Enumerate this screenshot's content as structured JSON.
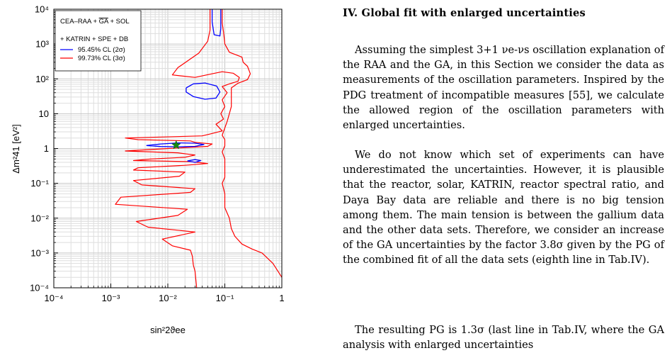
{
  "figure": {
    "legend": {
      "title_line1": "CEA–RAA + GA + SOL",
      "title_line1_prefix": "CEA–RAA + ",
      "title_line1_overline": "GA",
      "title_line1_suffix": " + SOL",
      "title_line2": "+ KATRIN + SPE + DB",
      "entries": [
        {
          "label": "95.45% CL (2σ)",
          "color": "#0000ff"
        },
        {
          "label": "99.73% CL (3σ)",
          "color": "#ff0000"
        }
      ]
    },
    "best_fit_color": "#138a13",
    "chart_data": {
      "type": "contour",
      "xlabel": "sin²2ϑee",
      "ylabel": "Δm²41  [eV²]",
      "x_scale": "log",
      "y_scale": "log",
      "xlim": [
        0.0001,
        1
      ],
      "ylim": [
        0.0001,
        10000
      ],
      "x_tick_labels": [
        "10⁻⁴",
        "10⁻³",
        "10⁻²",
        "10⁻¹",
        "1"
      ],
      "y_tick_labels": [
        "10⁻⁴",
        "10⁻³",
        "10⁻²",
        "10⁻¹",
        "1",
        "10",
        "10²",
        "10³",
        "10⁴"
      ],
      "grid": true,
      "legend_position": "top-left",
      "best_fit": {
        "x": 0.014,
        "y": 1.25
      },
      "series": [
        {
          "name": "95.45% CL (2σ)",
          "color": "#0000ff",
          "contours": [
            [
              [
                0.06,
                10000
              ],
              [
                0.06,
                4300
              ],
              [
                0.065,
                1850
              ],
              [
                0.082,
                1700
              ],
              [
                0.085,
                2800
              ],
              [
                0.085,
                10000
              ]
            ],
            [
              [
                0.021,
                55
              ],
              [
                0.028,
                72
              ],
              [
                0.045,
                76
              ],
              [
                0.072,
                62
              ],
              [
                0.082,
                42
              ],
              [
                0.07,
                28
              ],
              [
                0.045,
                26
              ],
              [
                0.028,
                31
              ],
              [
                0.021,
                42
              ],
              [
                0.021,
                55
              ]
            ],
            [
              [
                0.0042,
                1.22
              ],
              [
                0.0075,
                1.35
              ],
              [
                0.015,
                1.45
              ],
              [
                0.03,
                1.42
              ],
              [
                0.043,
                1.3
              ],
              [
                0.03,
                1.15
              ],
              [
                0.015,
                1.12
              ],
              [
                0.0075,
                1.14
              ],
              [
                0.0042,
                1.22
              ]
            ],
            [
              [
                0.022,
                0.44
              ],
              [
                0.03,
                0.48
              ],
              [
                0.038,
                0.45
              ],
              [
                0.03,
                0.4
              ],
              [
                0.022,
                0.44
              ]
            ]
          ]
        },
        {
          "name": "99.73% CL (3σ)",
          "color": "#ff0000",
          "left_branch": [
            [
              0.055,
              10000
            ],
            [
              0.055,
              2500
            ],
            [
              0.05,
              1200
            ],
            [
              0.035,
              550
            ],
            [
              0.015,
              210
            ],
            [
              0.012,
              130
            ],
            [
              0.03,
              110
            ],
            [
              0.06,
              140
            ],
            [
              0.09,
              160
            ],
            [
              0.14,
              145
            ],
            [
              0.18,
              110
            ],
            [
              0.17,
              85
            ],
            [
              0.12,
              72
            ],
            [
              0.09,
              60
            ],
            [
              0.11,
              40
            ],
            [
              0.09,
              25
            ],
            [
              0.1,
              16
            ],
            [
              0.085,
              10
            ],
            [
              0.095,
              7
            ],
            [
              0.07,
              5
            ],
            [
              0.09,
              3.2
            ],
            [
              0.055,
              2.6
            ],
            [
              0.04,
              2.3
            ],
            [
              0.0018,
              2
            ],
            [
              0.003,
              1.8
            ],
            [
              0.025,
              1.65
            ],
            [
              0.03,
              1.5
            ],
            [
              0.06,
              1.35
            ],
            [
              0.05,
              1.15
            ],
            [
              0.01,
              1
            ],
            [
              0.0018,
              0.85
            ],
            [
              0.015,
              0.75
            ],
            [
              0.03,
              0.65
            ],
            [
              0.02,
              0.56
            ],
            [
              0.005,
              0.5
            ],
            [
              0.0025,
              0.45
            ],
            [
              0.025,
              0.42
            ],
            [
              0.05,
              0.37
            ],
            [
              0.02,
              0.33
            ],
            [
              0.003,
              0.28
            ],
            [
              0.0025,
              0.24
            ],
            [
              0.02,
              0.21
            ],
            [
              0.016,
              0.16
            ],
            [
              0.0025,
              0.12
            ],
            [
              0.0035,
              0.09
            ],
            [
              0.03,
              0.07
            ],
            [
              0.025,
              0.055
            ],
            [
              0.0015,
              0.04
            ],
            [
              0.0012,
              0.025
            ],
            [
              0.022,
              0.018
            ],
            [
              0.015,
              0.012
            ],
            [
              0.0028,
              0.008
            ],
            [
              0.0045,
              0.0055
            ],
            [
              0.03,
              0.004
            ],
            [
              0.008,
              0.0025
            ],
            [
              0.012,
              0.0016
            ],
            [
              0.025,
              0.0012
            ],
            [
              0.027,
              0.0008
            ],
            [
              0.028,
              0.00045
            ],
            [
              0.03,
              0.0003
            ],
            [
              0.032,
              0.0001
            ]
          ],
          "right_branch": [
            [
              0.09,
              10000
            ],
            [
              0.09,
              4000
            ],
            [
              0.095,
              2200
            ],
            [
              0.1,
              1000
            ],
            [
              0.12,
              580
            ],
            [
              0.2,
              420
            ],
            [
              0.21,
              300
            ],
            [
              0.25,
              230
            ],
            [
              0.28,
              140
            ],
            [
              0.25,
              95
            ],
            [
              0.17,
              75
            ],
            [
              0.13,
              55
            ],
            [
              0.13,
              30
            ],
            [
              0.13,
              16
            ],
            [
              0.12,
              10
            ],
            [
              0.11,
              6
            ],
            [
              0.09,
              2.4
            ],
            [
              0.1,
              1.8
            ],
            [
              0.1,
              1.2
            ],
            [
              0.09,
              0.8
            ],
            [
              0.1,
              0.5
            ],
            [
              0.1,
              0.3
            ],
            [
              0.1,
              0.15
            ],
            [
              0.09,
              0.1
            ],
            [
              0.1,
              0.05
            ],
            [
              0.1,
              0.02
            ],
            [
              0.12,
              0.01
            ],
            [
              0.13,
              0.005
            ],
            [
              0.15,
              0.003
            ],
            [
              0.2,
              0.0018
            ],
            [
              0.3,
              0.0013
            ],
            [
              0.45,
              0.001
            ],
            [
              0.7,
              0.0005
            ],
            [
              1,
              0.0002
            ]
          ]
        }
      ]
    }
  },
  "section": {
    "title": "IV.   Global fit with enlarged uncertainties"
  },
  "paragraphs": [
    {
      "id": "p1",
      "text": "Assuming the simplest 3+1 νe-νs oscillation explanation of the RAA and the GA, in this Section we consider the data as measurements of the oscillation parameters. Inspired by the PDG treatment of incompatible measures [55], we calculate the allowed region of the oscillation parameters with enlarged uncertainties."
    },
    {
      "id": "p2",
      "text": "We do not know which set of experiments can have underestimated the uncertainties. However, it is plausible that the reactor, solar, KATRIN, reactor spectral ratio, and Daya Bay data are reliable and there is no big tension among them. The main tension is between the gallium data and the other data sets. Therefore, we consider an increase of the GA uncertainties by the factor 3.8σ given by the PG of the combined fit of all the data sets (eighth line in Tab.IV)."
    },
    {
      "id": "p3",
      "text": "The resulting PG is 1.3σ (last line in Tab.IV, where the GA analysis with enlarged uncertainties"
    }
  ]
}
